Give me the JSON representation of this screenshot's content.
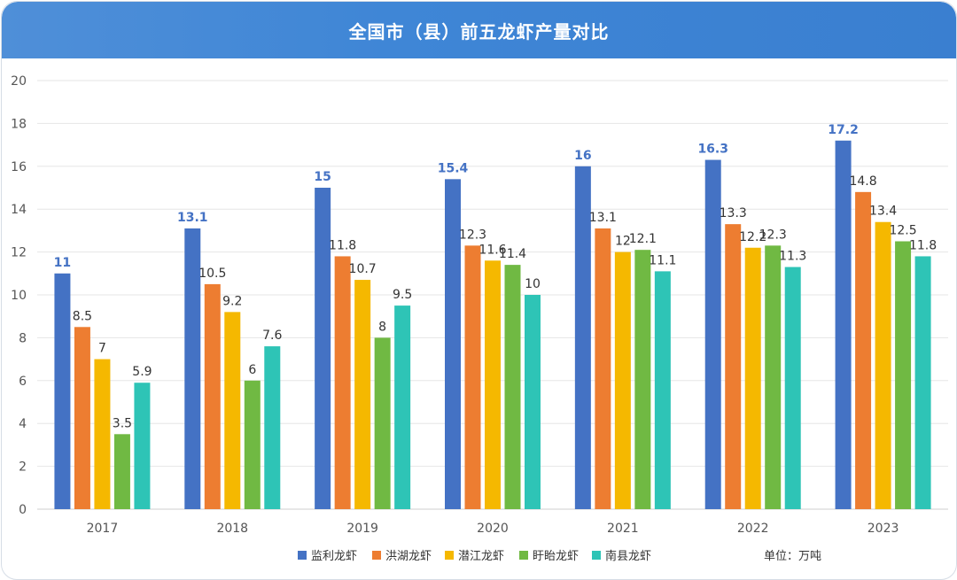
{
  "title": "全国市（县）前五龙虾产量对比",
  "unit_label": "单位：万吨",
  "colors": {
    "header": "#3f86d6",
    "series": [
      "#4472C4",
      "#ED7D31",
      "#F5B800",
      "#70B943",
      "#2EC4B6"
    ],
    "grid": "#e6e6e6"
  },
  "chart_data": {
    "type": "bar",
    "categories": [
      "2017",
      "2018",
      "2019",
      "2020",
      "2021",
      "2022",
      "2023"
    ],
    "series": [
      {
        "name": "监利龙虾",
        "values": [
          11,
          13.1,
          15,
          15.4,
          16,
          16.3,
          17.2
        ]
      },
      {
        "name": "洪湖龙虾",
        "values": [
          8.5,
          10.5,
          11.8,
          12.3,
          13.1,
          13.3,
          14.8
        ]
      },
      {
        "name": "潜江龙虾",
        "values": [
          7,
          9.2,
          10.7,
          11.6,
          12,
          12.2,
          13.4
        ]
      },
      {
        "name": "盱眙龙虾",
        "values": [
          3.5,
          6,
          8,
          11.4,
          12.1,
          12.3,
          12.5
        ]
      },
      {
        "name": "南县龙虾",
        "values": [
          5.9,
          7.6,
          9.5,
          10,
          11.1,
          11.3,
          11.8
        ]
      }
    ],
    "ylim": [
      0,
      20
    ],
    "yticks": [
      0,
      2,
      4,
      6,
      8,
      10,
      12,
      14,
      16,
      18,
      20
    ],
    "grid": true,
    "legend_position": "bottom"
  }
}
